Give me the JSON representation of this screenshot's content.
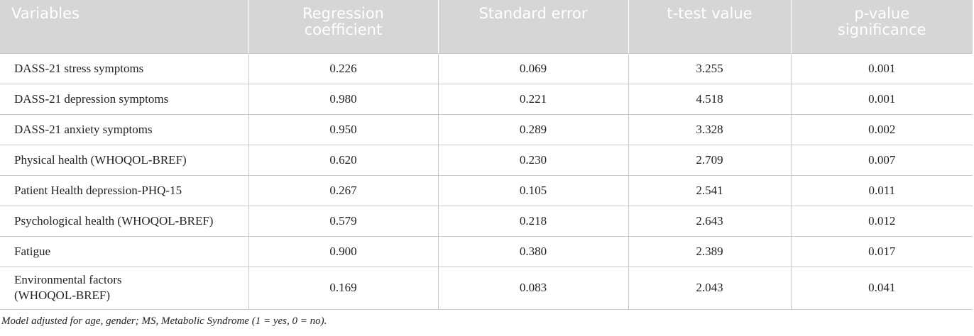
{
  "table": {
    "header": [
      "Variables",
      "Regression coefficient",
      "Standard error",
      "t-test value",
      "p-value significance"
    ],
    "rows": [
      [
        "DASS-21 stress symptoms",
        "0.226",
        "0.069",
        "3.255",
        "0.001"
      ],
      [
        "DASS-21 depression symptoms",
        "0.980",
        "0.221",
        "4.518",
        "0.001"
      ],
      [
        "DASS-21 anxiety symptoms",
        "0.950",
        "0.289",
        "3.328",
        "0.002"
      ],
      [
        "Physical health (WHOQOL-BREF)",
        "0.620",
        "0.230",
        "2.709",
        "0.007"
      ],
      [
        "Patient Health depression-PHQ-15",
        "0.267",
        "0.105",
        "2.541",
        "0.011"
      ],
      [
        "Psychological health (WHOQOL-BREF)",
        "0.579",
        "0.218",
        "2.643",
        "0.012"
      ],
      [
        "Fatigue",
        "0.900",
        "0.380",
        "2.389",
        "0.017"
      ],
      [
        "Environmental factors (WHOQOL-BREF)",
        "0.169",
        "0.083",
        "2.043",
        "0.041"
      ]
    ]
  },
  "footnote": "Model adjusted for age, gender; MS, Metabolic Syndrome (1 = yes, 0 = no)."
}
